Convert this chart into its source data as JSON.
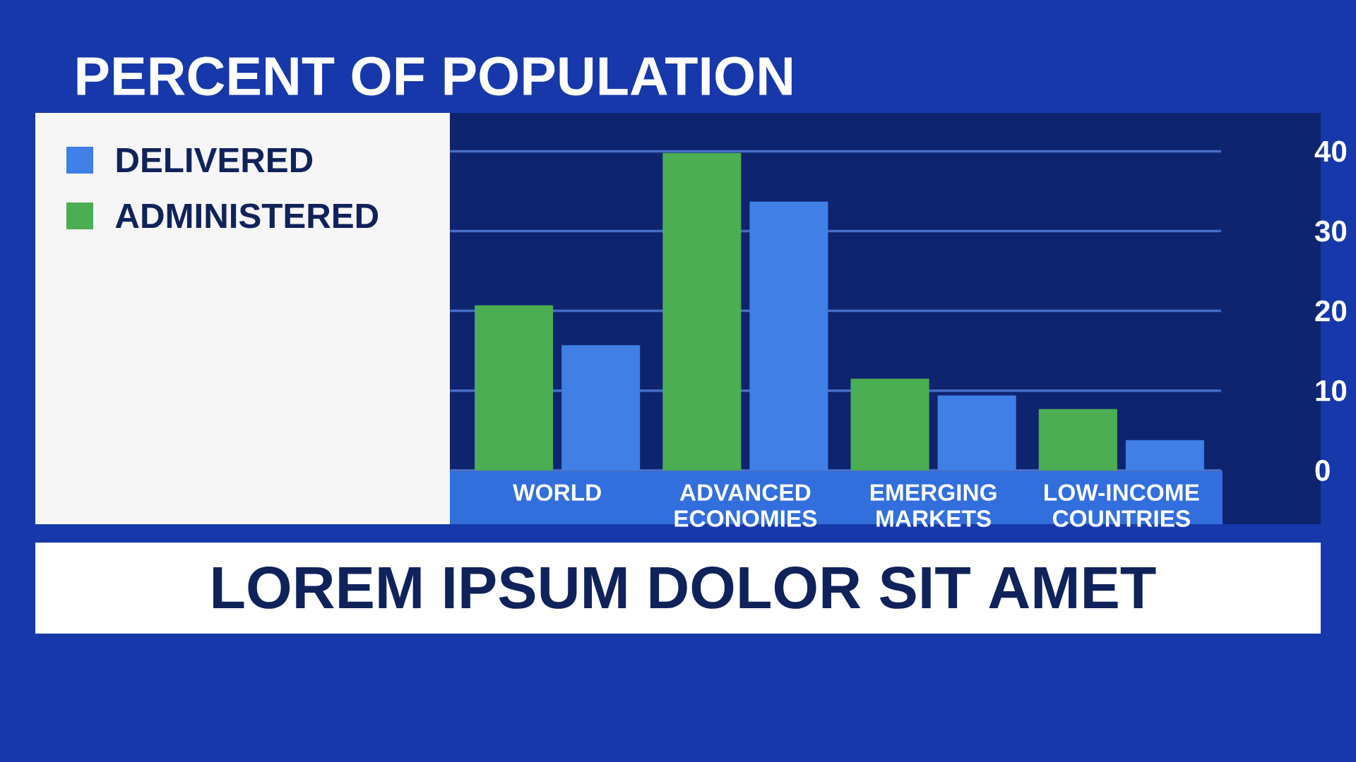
{
  "chart_data": {
    "type": "bar",
    "title": "PERCENT OF POPULATION",
    "categories": [
      "WORLD",
      "ADVANCED ECONOMIES",
      "EMERGING MARKETS",
      "LOW-INCOME COUNTRIES"
    ],
    "series": [
      {
        "name": "ADMINISTERED",
        "color": "#4cae52",
        "values": [
          20.7,
          39.8,
          11.5,
          7.7
        ]
      },
      {
        "name": "DELIVERED",
        "color": "#3f7fe6",
        "values": [
          15.7,
          33.7,
          9.4,
          3.8
        ]
      }
    ],
    "ylim": [
      0,
      45
    ],
    "yticks": [
      0,
      10,
      20,
      30,
      40
    ],
    "grid": "y",
    "legend": "left",
    "annotations": [
      "LOREM IPSUM DOLOR SIT AMET"
    ]
  }
}
